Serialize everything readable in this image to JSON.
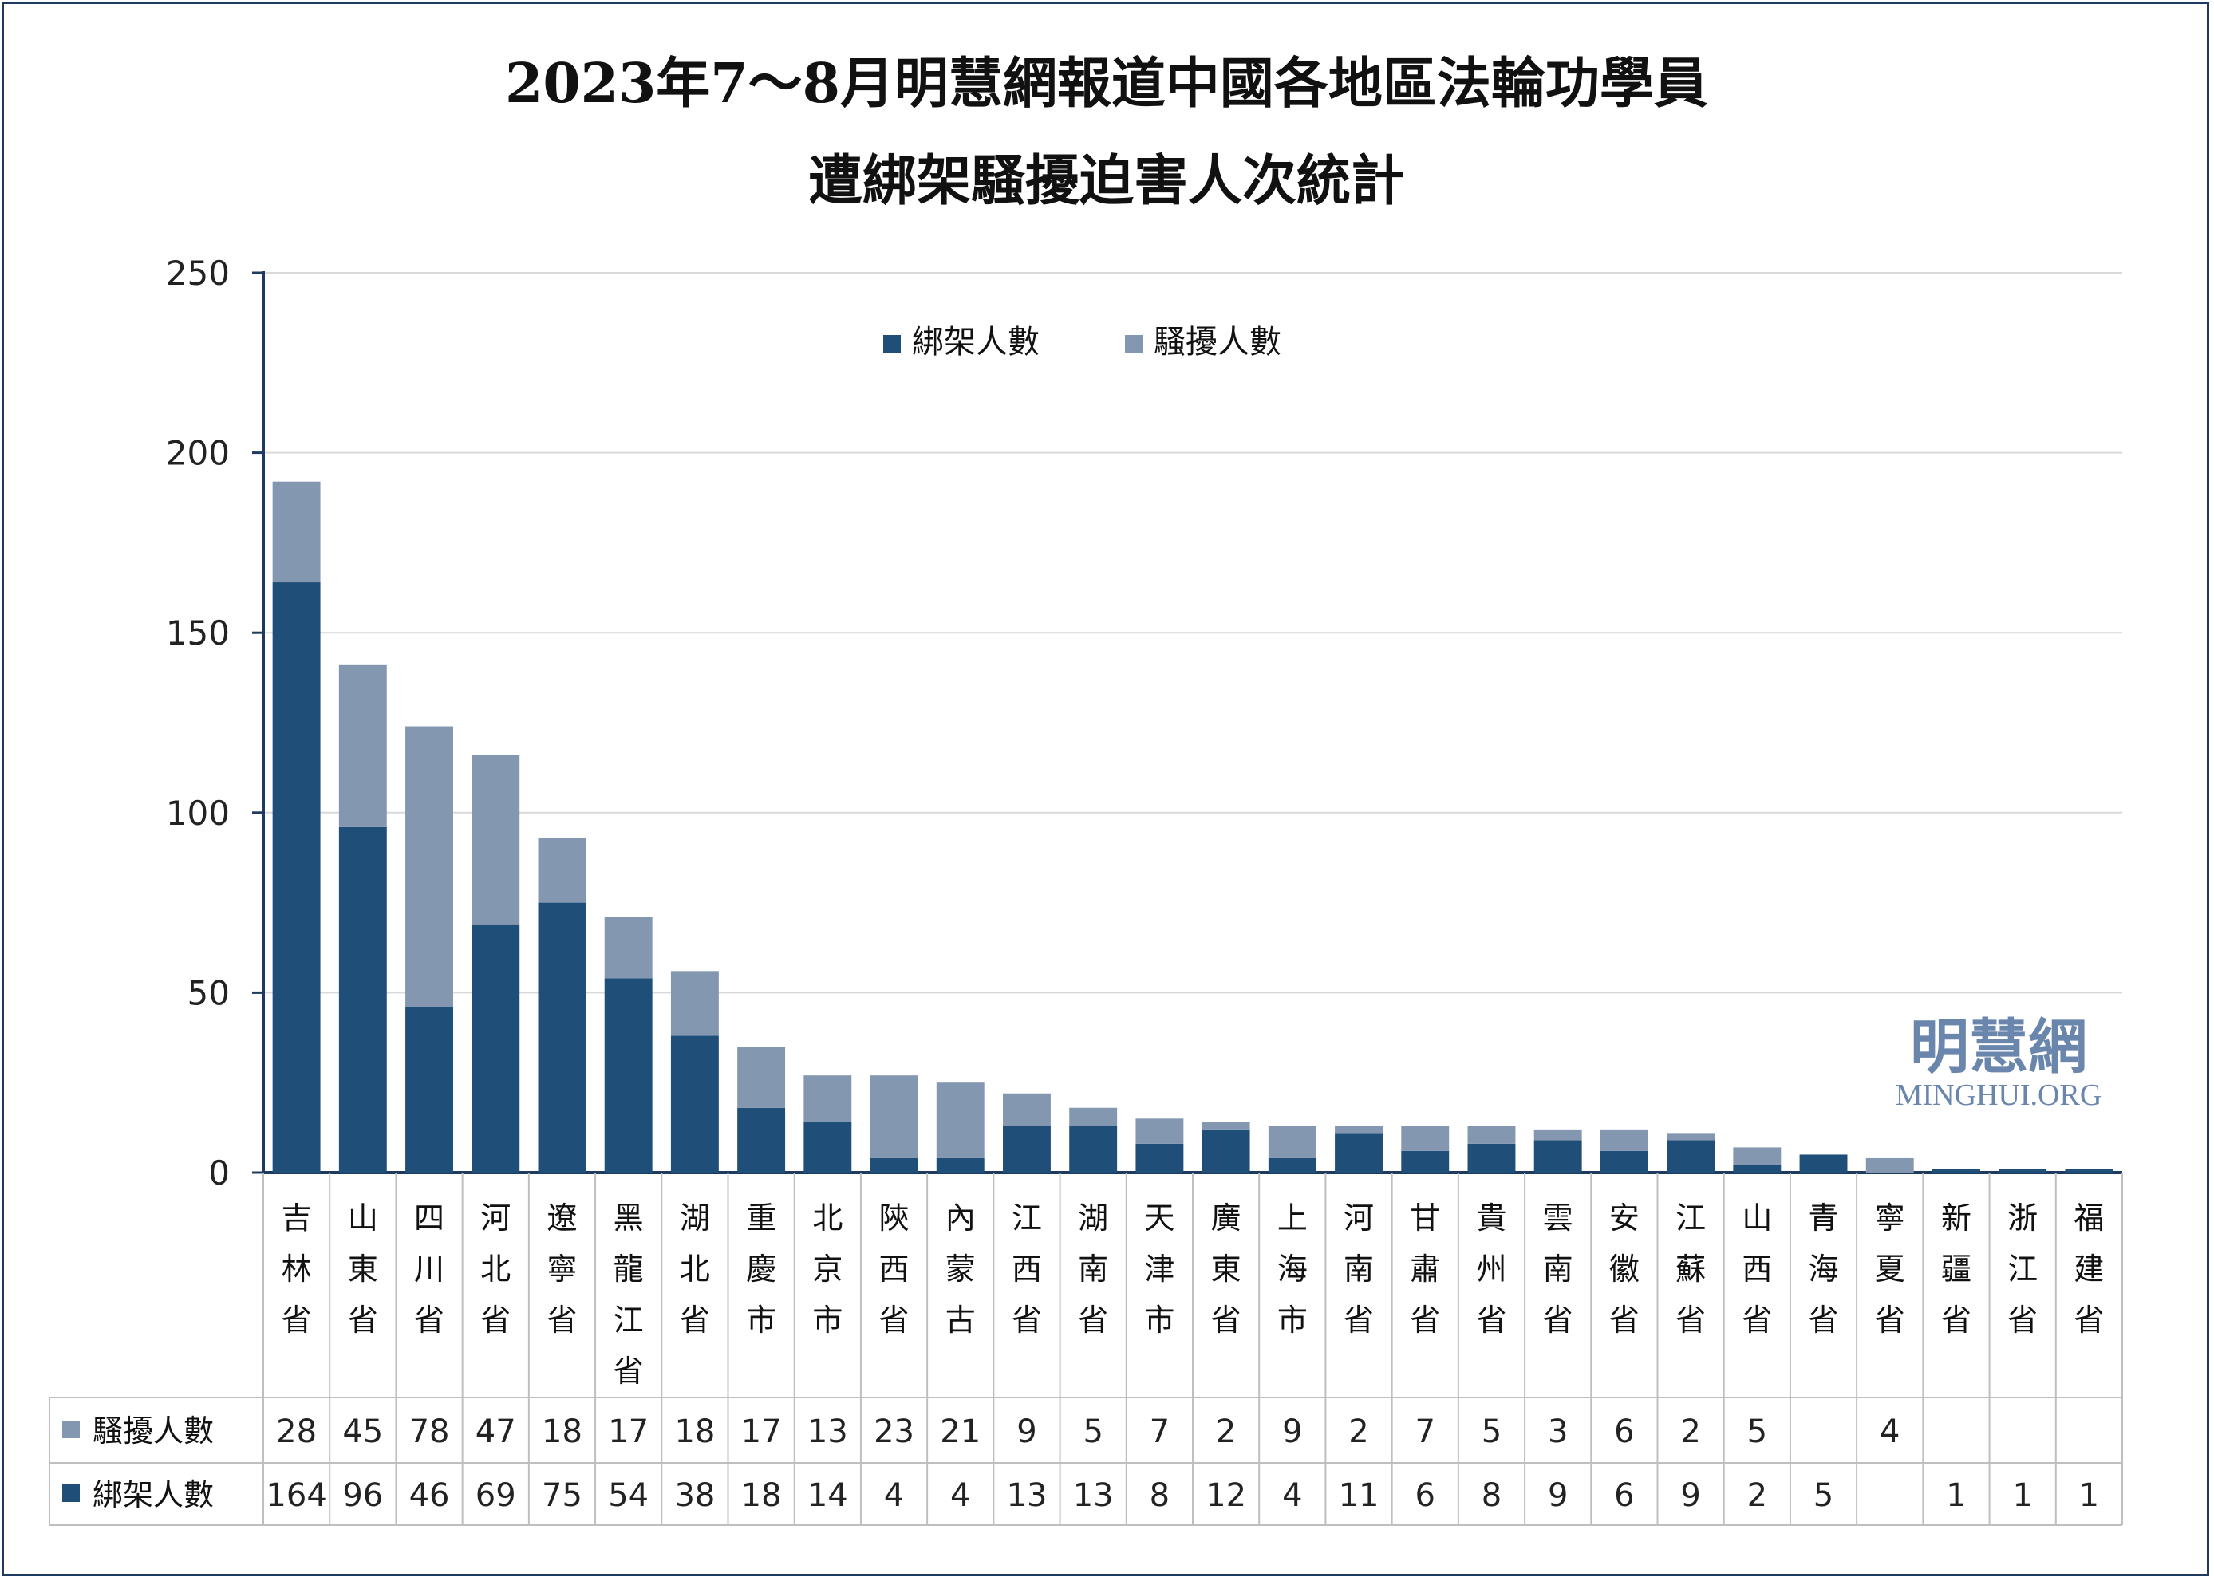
{
  "title_line1": "2023年7～8月明慧網報道中國各地區法輪功學員",
  "title_line2": "遭綁架騷擾迫害人次統計",
  "watermark": {
    "cn": "明慧網",
    "en": "MINGHUI.ORG"
  },
  "colors": {
    "abduct": "#1f4e79",
    "harass": "#8497b0",
    "grid": "#d9d9d9",
    "axis": "#1f3a5f",
    "table_border": "#bfbfbf",
    "watermark": "#6a86ad"
  },
  "chart_data": {
    "type": "bar",
    "stacked": true,
    "categories": [
      "吉林省",
      "山東省",
      "四川省",
      "河北省",
      "遼寧省",
      "黑龍江省",
      "湖北省",
      "重慶市",
      "北京市",
      "陝西省",
      "內蒙古",
      "江西省",
      "湖南省",
      "天津市",
      "廣東省",
      "上海市",
      "河南省",
      "甘肅省",
      "貴州省",
      "雲南省",
      "安徽省",
      "江蘇省",
      "山西省",
      "青海省",
      "寧夏省",
      "新疆省",
      "浙江省",
      "福建省"
    ],
    "series": [
      {
        "name": "綁架人數",
        "values": [
          164,
          96,
          46,
          69,
          75,
          54,
          38,
          18,
          14,
          4,
          4,
          13,
          13,
          8,
          12,
          4,
          11,
          6,
          8,
          9,
          6,
          9,
          2,
          5,
          null,
          1,
          1,
          1
        ]
      },
      {
        "name": "騷擾人數",
        "values": [
          28,
          45,
          78,
          47,
          18,
          17,
          18,
          17,
          13,
          23,
          21,
          9,
          5,
          7,
          2,
          9,
          2,
          7,
          5,
          3,
          6,
          2,
          5,
          null,
          4,
          null,
          null,
          null
        ]
      }
    ],
    "ylim": [
      0,
      250
    ],
    "yticks": [
      "0",
      "50",
      "100",
      "150",
      "200",
      "250"
    ],
    "legend_position": "top-center",
    "grid": true,
    "data_table": true,
    "table_row_order": [
      "騷擾人數",
      "綁架人數"
    ]
  }
}
